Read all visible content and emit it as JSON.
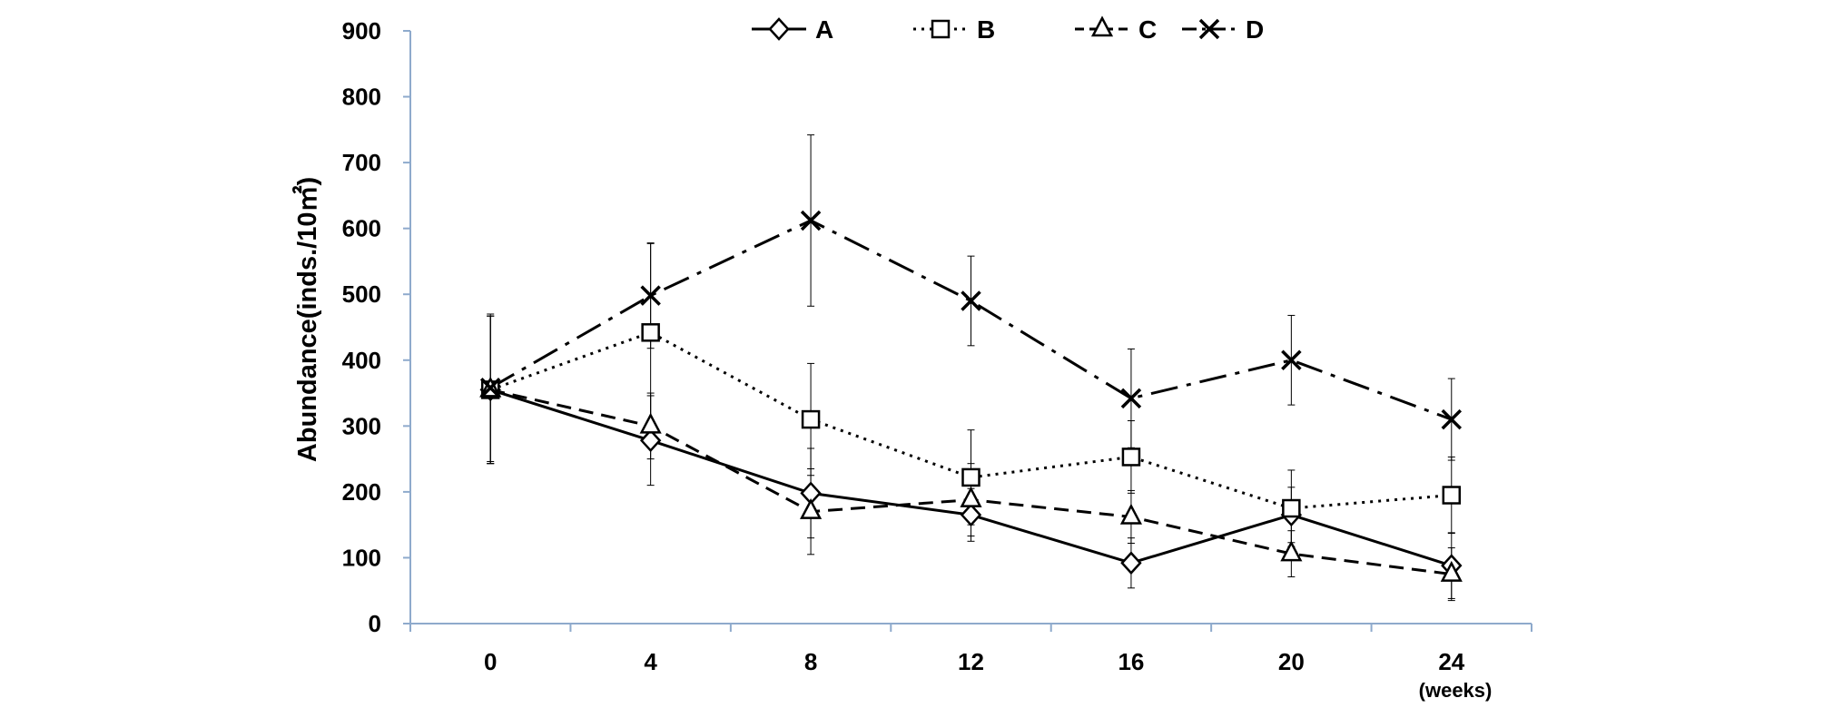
{
  "chart_data": {
    "type": "line",
    "title": "",
    "xlabel": "",
    "x_unit_label": "(weeks)",
    "ylabel": "Abundance(inds./10㎡)",
    "x": [
      0,
      4,
      8,
      12,
      16,
      20,
      24
    ],
    "xlim": [
      0,
      24
    ],
    "ylim": [
      0,
      900
    ],
    "yticks": [
      0,
      100,
      200,
      300,
      400,
      500,
      600,
      700,
      800,
      900
    ],
    "grid": false,
    "legend_position": "top-center",
    "series": [
      {
        "name": "A",
        "marker": "diamond",
        "dash": "solid",
        "values": [
          355,
          278,
          198,
          165,
          92,
          165,
          88
        ],
        "errors": [
          112,
          68,
          68,
          40,
          38,
          42,
          50
        ]
      },
      {
        "name": "B",
        "marker": "square",
        "dash": "dotted",
        "values": [
          355,
          442,
          310,
          222,
          253,
          175,
          195
        ],
        "errors": [
          112,
          135,
          85,
          72,
          55,
          58,
          58
        ]
      },
      {
        "name": "C",
        "marker": "triangle",
        "dash": "dashed",
        "values": [
          355,
          300,
          170,
          188,
          162,
          106,
          75
        ],
        "errors": [
          112,
          50,
          65,
          55,
          40,
          35,
          40
        ]
      },
      {
        "name": "D",
        "marker": "x",
        "dash": "dash-dot",
        "values": [
          358,
          498,
          612,
          490,
          342,
          400,
          310
        ],
        "errors": [
          112,
          80,
          130,
          68,
          75,
          68,
          62
        ]
      }
    ],
    "colors": {
      "axis": "#8eaacc",
      "series": "#000000"
    }
  }
}
